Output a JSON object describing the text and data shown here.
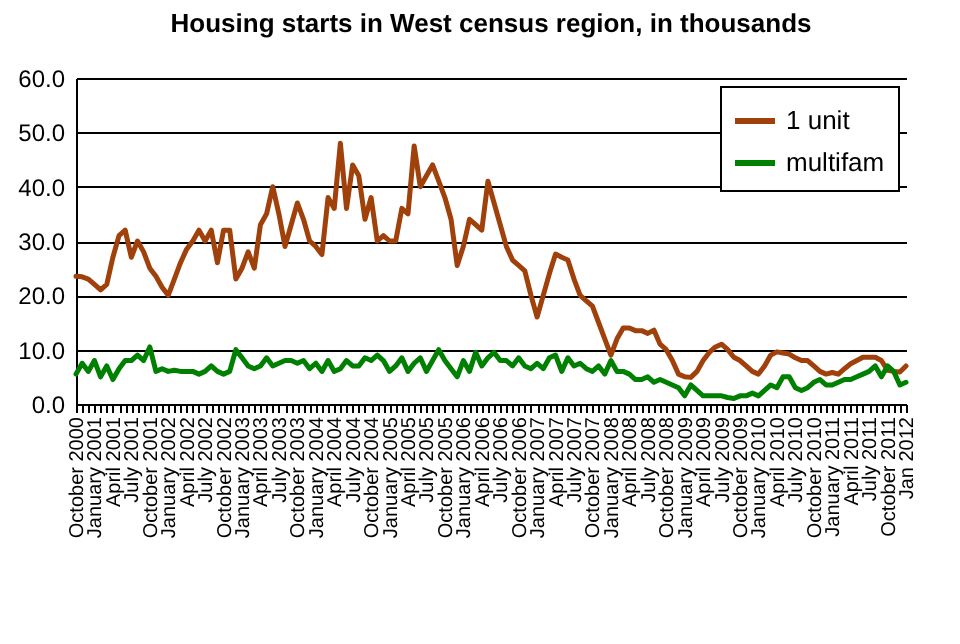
{
  "chart_data": {
    "type": "line",
    "title": "Housing starts in West census region, in thousands",
    "categories": [
      "October 2000",
      null,
      null,
      "January 2001",
      null,
      null,
      "April 2001",
      null,
      null,
      "July 2001",
      null,
      null,
      "October 2001",
      null,
      null,
      "January 2002",
      null,
      null,
      "April 2002",
      null,
      null,
      "July 2002",
      null,
      null,
      "October 2002",
      null,
      null,
      "January 2003",
      null,
      null,
      "April 2003",
      null,
      null,
      "July 2003",
      null,
      null,
      "October 2003",
      null,
      null,
      "January 2004",
      null,
      null,
      "April 2004",
      null,
      null,
      "July 2004",
      null,
      null,
      "October 2004",
      null,
      null,
      "January 2005",
      null,
      null,
      "April 2005",
      null,
      null,
      "July 2005",
      null,
      null,
      "October 2005",
      null,
      null,
      "January 2006",
      null,
      null,
      "April 2006",
      null,
      null,
      "July 2006",
      null,
      null,
      "October 2006",
      null,
      null,
      "January 2007",
      null,
      null,
      "April 2007",
      null,
      null,
      "July 2007",
      null,
      null,
      "October 2007",
      null,
      null,
      "January 2008",
      null,
      null,
      "April 2008",
      null,
      null,
      "July 2008",
      null,
      null,
      "October 2008",
      null,
      null,
      "January 2009",
      null,
      null,
      "April 2009",
      null,
      null,
      "July 2009",
      null,
      null,
      "October 2009",
      null,
      null,
      "January 2010",
      null,
      null,
      "April 2010",
      null,
      null,
      "July 2010",
      null,
      null,
      "October 2010",
      null,
      null,
      "January 2011",
      null,
      null,
      "April 2011",
      null,
      null,
      "July 2011",
      null,
      null,
      "October 2011",
      null,
      null,
      "Jan 2012"
    ],
    "series": [
      {
        "name": "1 unit",
        "color": "#a0400a",
        "values": [
          23.5,
          23.4,
          23,
          22,
          21,
          22,
          27,
          31,
          32,
          27,
          30,
          28,
          25,
          23.5,
          21.5,
          20,
          23,
          26,
          28.5,
          30,
          32,
          30,
          32,
          26,
          32,
          32,
          23,
          25,
          28,
          25,
          33,
          35,
          40,
          35,
          29,
          33,
          37,
          34,
          30,
          29,
          27.5,
          38,
          36,
          48,
          36,
          44,
          42,
          34,
          38,
          30,
          31,
          30,
          30,
          36,
          35,
          47.5,
          40,
          42,
          44,
          41,
          38,
          34,
          25.5,
          29,
          34,
          33,
          32,
          41,
          37,
          33,
          29,
          26.5,
          25.5,
          24.5,
          20,
          16,
          20,
          24,
          27.6,
          27,
          26.5,
          23,
          20,
          19,
          18,
          15,
          12,
          9,
          12,
          14,
          14,
          13.5,
          13.5,
          13,
          13.6,
          11,
          10,
          8,
          5.5,
          5,
          4.9,
          6,
          8,
          9.5,
          10.5,
          11,
          10,
          8.6,
          8,
          7,
          6,
          5.5,
          7,
          9,
          9.6,
          9.4,
          9.2,
          8.5,
          8,
          8,
          7,
          6,
          5.5,
          5.8,
          5.5,
          6.5,
          7.4,
          8,
          8.6,
          8.6,
          8.6,
          8,
          6.2,
          6,
          5.9,
          7
        ]
      },
      {
        "name": "multifam",
        "color": "#008000",
        "values": [
          5.5,
          7.5,
          6,
          8,
          5,
          7,
          4.5,
          6.5,
          8,
          8,
          9,
          8,
          10.5,
          6,
          6.5,
          6,
          6.2,
          6,
          6,
          6,
          5.5,
          6,
          7,
          6,
          5.5,
          6,
          10,
          8.5,
          7,
          6.5,
          7,
          8.5,
          7,
          7.5,
          8,
          8,
          7.5,
          8,
          6.5,
          7.5,
          6,
          8,
          6,
          6.5,
          8,
          7,
          7,
          8.5,
          8,
          9,
          8,
          6,
          7,
          8.5,
          6,
          7.5,
          8.5,
          6,
          8,
          10,
          8,
          6.5,
          5,
          8,
          6,
          9.5,
          7,
          8.5,
          9.5,
          8,
          8,
          7,
          8.5,
          7,
          6.5,
          7.5,
          6.5,
          8.5,
          9,
          6,
          8.5,
          7,
          7.5,
          6.5,
          6,
          7,
          5.5,
          8,
          6,
          6,
          5.5,
          4.5,
          4.5,
          5,
          4,
          4.5,
          4,
          3.5,
          3,
          1.5,
          3.5,
          2.5,
          1.5,
          1.5,
          1.5,
          1.5,
          1.2,
          1,
          1.5,
          1.5,
          2,
          1.5,
          2.5,
          3.5,
          3,
          5,
          5,
          3,
          2.5,
          3,
          4,
          4.5,
          3.5,
          3.5,
          4,
          4.5,
          4.5,
          5,
          5.5,
          6,
          7,
          5,
          7,
          6,
          3.5,
          4
        ]
      }
    ],
    "ylim": [
      0,
      60
    ],
    "yticks": [
      {
        "value": 0,
        "label": "0.0"
      },
      {
        "value": 10,
        "label": "10.0"
      },
      {
        "value": 20,
        "label": "20.0"
      },
      {
        "value": 30,
        "label": "30.0"
      },
      {
        "value": 40,
        "label": "40.0"
      },
      {
        "value": 50,
        "label": "50.0"
      },
      {
        "value": 60,
        "label": "60.0"
      }
    ],
    "grid": "y",
    "legend": "top right"
  }
}
